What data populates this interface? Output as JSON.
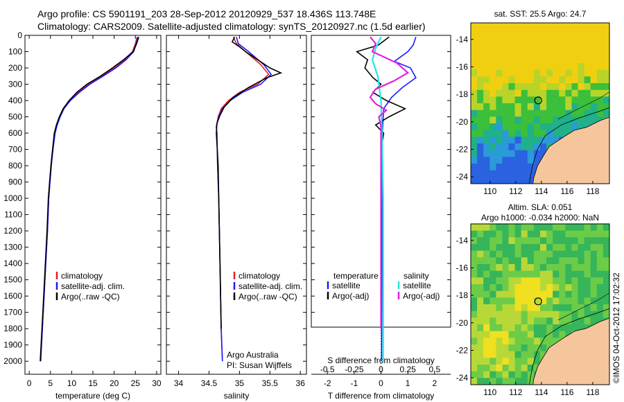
{
  "header": {
    "line1": "Argo profile: CS 5901191_203 28-Sep-2012 20120929_537 18.436S 113.748E",
    "line2": "Climatology: CARS2009. Satellite-adjusted climatology: synTS_20120927.nc (1.5d earlier)"
  },
  "colors": {
    "climatology": "#e02020",
    "satellite": "#1a1aff",
    "argo": "#000000",
    "salinity_satellite": "#1ee6e6",
    "salinity_argo": "#e020e0",
    "land": "#f5c59c"
  },
  "chart_data": [
    {
      "type": "line",
      "panel": "temperature",
      "xlabel": "temperature (deg C)",
      "xticks": [
        0,
        5,
        10,
        15,
        20,
        25,
        30
      ],
      "xlim": [
        -1,
        31
      ],
      "yticks": [
        0,
        100,
        200,
        300,
        400,
        500,
        600,
        700,
        800,
        900,
        1000,
        1100,
        1200,
        1300,
        1400,
        1500,
        1600,
        1700,
        1800,
        1900,
        2000
      ],
      "ylim": [
        0,
        2080
      ],
      "y_inverted": true,
      "legend": [
        "climatology",
        "satellite-adj. clim.",
        "Argo(..raw -QC)"
      ],
      "series": [
        {
          "name": "climatology",
          "color_key": "climatology",
          "points": [
            [
              25.4,
              10
            ],
            [
              25.0,
              50
            ],
            [
              24.3,
              100
            ],
            [
              22.5,
              150
            ],
            [
              20.0,
              200
            ],
            [
              17.0,
              250
            ],
            [
              14.0,
              300
            ],
            [
              11.5,
              350
            ],
            [
              9.5,
              400
            ],
            [
              8.0,
              450
            ],
            [
              7.2,
              500
            ],
            [
              6.5,
              550
            ],
            [
              6.0,
              600
            ],
            [
              5.6,
              700
            ],
            [
              5.2,
              800
            ],
            [
              4.9,
              900
            ],
            [
              4.6,
              1000
            ],
            [
              4.3,
              1200
            ],
            [
              3.9,
              1400
            ],
            [
              3.5,
              1600
            ],
            [
              3.1,
              1800
            ],
            [
              2.7,
              2000
            ]
          ]
        },
        {
          "name": "satellite-adj. clim.",
          "color_key": "satellite",
          "points": [
            [
              25.6,
              10
            ],
            [
              25.2,
              50
            ],
            [
              24.6,
              100
            ],
            [
              22.8,
              150
            ],
            [
              20.4,
              200
            ],
            [
              17.4,
              250
            ],
            [
              14.3,
              300
            ],
            [
              11.8,
              350
            ],
            [
              9.7,
              400
            ],
            [
              8.2,
              450
            ],
            [
              7.3,
              500
            ],
            [
              6.6,
              550
            ],
            [
              6.1,
              600
            ],
            [
              5.6,
              700
            ],
            [
              5.2,
              800
            ],
            [
              4.9,
              900
            ],
            [
              4.6,
              1000
            ],
            [
              4.3,
              1200
            ],
            [
              3.9,
              1400
            ],
            [
              3.5,
              1600
            ],
            [
              3.1,
              1800
            ],
            [
              2.7,
              2000
            ]
          ]
        },
        {
          "name": "Argo(..raw -QC)",
          "color_key": "argo",
          "points": [
            [
              25.8,
              10
            ],
            [
              25.3,
              50
            ],
            [
              24.5,
              100
            ],
            [
              22.2,
              150
            ],
            [
              19.6,
              200
            ],
            [
              16.8,
              250
            ],
            [
              13.6,
              300
            ],
            [
              11.2,
              350
            ],
            [
              9.4,
              400
            ],
            [
              8.0,
              450
            ],
            [
              7.1,
              500
            ],
            [
              6.4,
              550
            ],
            [
              5.9,
              600
            ],
            [
              5.5,
              700
            ],
            [
              5.1,
              800
            ],
            [
              4.8,
              900
            ],
            [
              4.5,
              1000
            ],
            [
              4.2,
              1200
            ],
            [
              3.8,
              1400
            ],
            [
              3.4,
              1600
            ],
            [
              3.0,
              1800
            ],
            [
              2.6,
              2000
            ]
          ]
        }
      ]
    },
    {
      "type": "line",
      "panel": "salinity",
      "xlabel": "salinity",
      "xticks": [
        34,
        34.5,
        35,
        35.5,
        36
      ],
      "xlim": [
        33.8,
        36.1
      ],
      "ylim": [
        0,
        2080
      ],
      "y_inverted": true,
      "legend": [
        "climatology",
        "satellite-adj. clim.",
        "Argo(..raw -QC)"
      ],
      "annotation": [
        "Argo Australia",
        "PI: Susan Wijffels"
      ],
      "series": [
        {
          "name": "climatology",
          "color_key": "climatology",
          "points": [
            [
              34.9,
              10
            ],
            [
              34.95,
              50
            ],
            [
              35.1,
              100
            ],
            [
              35.35,
              180
            ],
            [
              35.48,
              240
            ],
            [
              35.3,
              300
            ],
            [
              35.0,
              350
            ],
            [
              34.82,
              400
            ],
            [
              34.7,
              450
            ],
            [
              34.65,
              500
            ],
            [
              34.62,
              560
            ],
            [
              34.63,
              600
            ],
            [
              34.64,
              800
            ],
            [
              34.66,
              1000
            ],
            [
              34.68,
              1400
            ],
            [
              34.7,
              1800
            ],
            [
              34.72,
              2000
            ]
          ]
        },
        {
          "name": "satellite-adj. clim.",
          "color_key": "satellite",
          "points": [
            [
              34.95,
              10
            ],
            [
              34.98,
              50
            ],
            [
              35.15,
              100
            ],
            [
              35.4,
              180
            ],
            [
              35.52,
              240
            ],
            [
              35.35,
              300
            ],
            [
              35.05,
              350
            ],
            [
              34.85,
              400
            ],
            [
              34.72,
              450
            ],
            [
              34.66,
              500
            ],
            [
              34.62,
              560
            ],
            [
              34.63,
              600
            ],
            [
              34.64,
              800
            ],
            [
              34.66,
              1000
            ],
            [
              34.68,
              1400
            ],
            [
              34.7,
              1800
            ],
            [
              34.72,
              2000
            ]
          ]
        },
        {
          "name": "Argo(..raw -QC)",
          "color_key": "argo",
          "points": [
            [
              34.92,
              10
            ],
            [
              34.88,
              40
            ],
            [
              35.0,
              70
            ],
            [
              35.1,
              100
            ],
            [
              35.3,
              150
            ],
            [
              35.5,
              200
            ],
            [
              35.68,
              230
            ],
            [
              35.45,
              260
            ],
            [
              35.15,
              320
            ],
            [
              34.9,
              380
            ],
            [
              34.75,
              440
            ],
            [
              34.68,
              490
            ],
            [
              34.63,
              540
            ],
            [
              34.62,
              600
            ],
            [
              34.65,
              800
            ],
            [
              34.66,
              1000
            ],
            [
              34.68,
              1400
            ],
            [
              34.7,
              1800
            ]
          ]
        }
      ]
    },
    {
      "type": "line",
      "panel": "difference",
      "xlabel_bottom": "T difference from climatology",
      "xticks_bottom": [
        -2,
        -1,
        0,
        1,
        2
      ],
      "xlim_bottom": [
        -2.6,
        2.6
      ],
      "xlabel_top": "S difference from climatology",
      "xticks_top": [
        -0.5,
        -0.25,
        0,
        0.25,
        0.5
      ],
      "ylim": [
        0,
        2080
      ],
      "y_inverted": true,
      "legend_titles": [
        "temperature",
        "salinity"
      ],
      "legend": [
        "satellite",
        "Argo(-adj)",
        "satellite",
        "Argo(-adj)"
      ],
      "series": [
        {
          "name": "satellite",
          "group": "temperature",
          "color_key": "satellite",
          "points": [
            [
              1.3,
              10
            ],
            [
              1.2,
              60
            ],
            [
              1.0,
              100
            ],
            [
              0.5,
              160
            ],
            [
              1.1,
              200
            ],
            [
              1.3,
              260
            ],
            [
              0.8,
              320
            ],
            [
              0.4,
              380
            ],
            [
              0.1,
              450
            ],
            [
              0.05,
              600
            ],
            [
              0.05,
              1000
            ],
            [
              0.03,
              1500
            ],
            [
              0.02,
              2000
            ]
          ]
        },
        {
          "name": "Argo(-adj)",
          "group": "temperature",
          "color_key": "argo",
          "points": [
            [
              0.3,
              10
            ],
            [
              -0.1,
              60
            ],
            [
              -0.9,
              100
            ],
            [
              -0.5,
              150
            ],
            [
              -0.6,
              200
            ],
            [
              -0.3,
              260
            ],
            [
              0.0,
              300
            ],
            [
              -0.3,
              350
            ],
            [
              0.2,
              400
            ],
            [
              0.9,
              450
            ],
            [
              0.3,
              500
            ],
            [
              -0.2,
              550
            ],
            [
              0.1,
              600
            ],
            [
              0.0,
              700
            ],
            [
              0.0,
              800
            ],
            [
              0.0,
              900
            ],
            [
              0.0,
              1000
            ],
            [
              0.0,
              1200
            ],
            [
              0.0,
              1400
            ],
            [
              0.0,
              1600
            ],
            [
              0.0,
              1800
            ]
          ]
        },
        {
          "name": "satellite",
          "group": "salinity",
          "color_key": "salinity_satellite",
          "points": [
            [
              0.0,
              10
            ],
            [
              -0.05,
              80
            ],
            [
              -0.08,
              150
            ],
            [
              -0.03,
              250
            ],
            [
              0.0,
              400
            ],
            [
              0.01,
              600
            ],
            [
              0.02,
              1000
            ],
            [
              0.02,
              1500
            ],
            [
              0.02,
              2000
            ]
          ]
        },
        {
          "name": "Argo(-adj)",
          "group": "salinity",
          "color_key": "salinity_argo",
          "points": [
            [
              -0.1,
              10
            ],
            [
              -0.05,
              50
            ],
            [
              -0.08,
              100
            ],
            [
              0.15,
              170
            ],
            [
              0.25,
              230
            ],
            [
              0.12,
              280
            ],
            [
              -0.05,
              330
            ],
            [
              -0.1,
              380
            ],
            [
              -0.05,
              420
            ],
            [
              0.05,
              460
            ],
            [
              -0.02,
              500
            ],
            [
              0.0,
              560
            ],
            [
              0.0,
              700
            ],
            [
              0.0,
              1000
            ],
            [
              0.0,
              1400
            ],
            [
              0.0,
              1800
            ]
          ]
        }
      ]
    },
    {
      "type": "heatmap",
      "panel": "map_sst",
      "title": "sat. SST: 25.5 Argo: 24.7",
      "xticks": [
        110,
        112,
        114,
        116,
        118
      ],
      "yticks": [
        -14,
        -16,
        -18,
        -20,
        -22,
        -24
      ],
      "xlim": [
        108.5,
        119.3
      ],
      "ylim": [
        -24.5,
        -12.8
      ],
      "marker": [
        113.75,
        -18.44
      ]
    },
    {
      "type": "heatmap",
      "panel": "map_sla",
      "title_line1": "Altim. SLA: 0.051",
      "title_line2": "Argo h1000: -0.034 h2000: NaN",
      "xticks": [
        110,
        112,
        114,
        116,
        118
      ],
      "yticks": [
        -14,
        -16,
        -18,
        -20,
        -22,
        -24
      ],
      "xlim": [
        108.5,
        119.3
      ],
      "ylim": [
        -24.5,
        -12.8
      ],
      "marker": [
        113.75,
        -18.44
      ]
    }
  ],
  "footer": {
    "stamp": "©IMOS 04-Oct-2012 17:02:32"
  }
}
